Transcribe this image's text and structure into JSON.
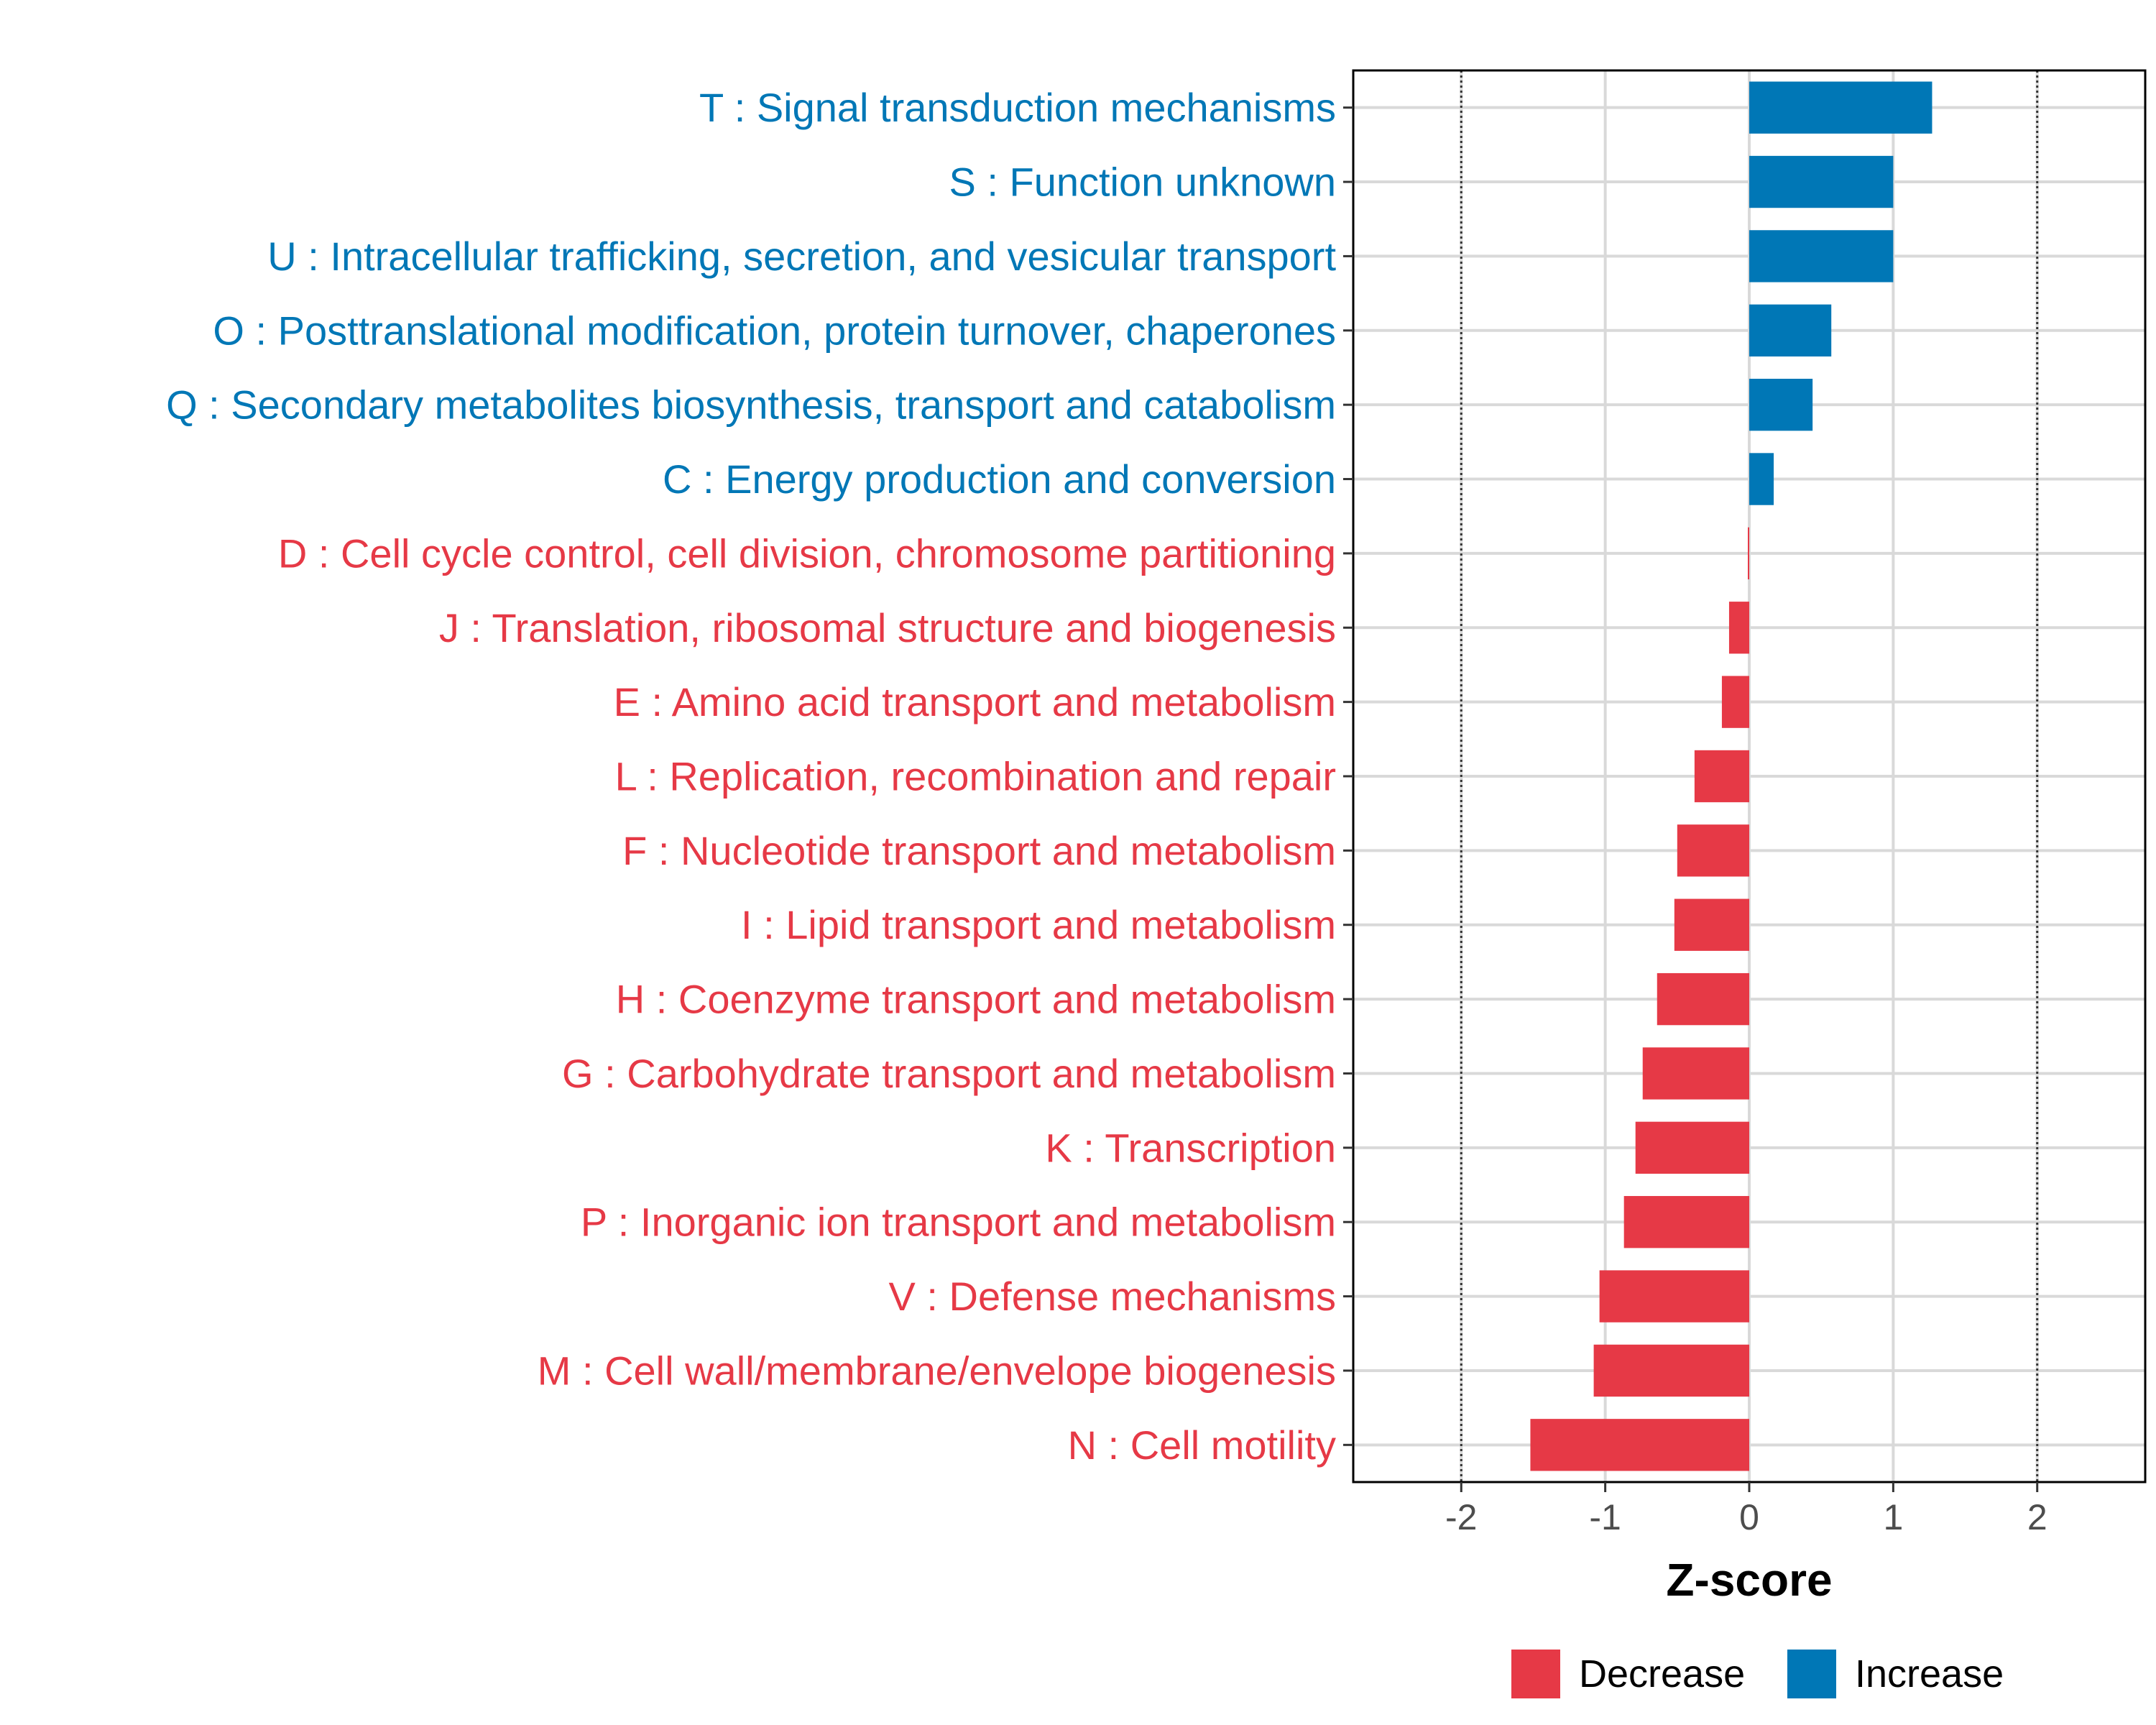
{
  "chart_data": {
    "type": "bar",
    "orientation": "horizontal",
    "xlabel": "Z-score",
    "ylabel": "",
    "xlim": [
      -2.75,
      2.75
    ],
    "xticks": [
      -2,
      -1,
      0,
      1,
      2
    ],
    "xtick_labels": [
      "-2",
      "-1",
      "0",
      "1",
      "2"
    ],
    "reference_lines": [
      -2,
      2
    ],
    "grid": true,
    "legend_position": "bottom",
    "colors": {
      "Decrease": "#E63946",
      "Increase": "#0077B6"
    },
    "legend": [
      {
        "name": "Decrease",
        "color": "#E63946"
      },
      {
        "name": "Increase",
        "color": "#0077B6"
      }
    ],
    "bars": [
      {
        "label": "T : Signal transduction mechanisms",
        "value": 1.27,
        "group": "Increase"
      },
      {
        "label": "S : Function unknown",
        "value": 1.0,
        "group": "Increase"
      },
      {
        "label": "U : Intracellular trafficking, secretion, and vesicular transport",
        "value": 1.0,
        "group": "Increase"
      },
      {
        "label": "O : Posttranslational modification, protein turnover, chaperones",
        "value": 0.57,
        "group": "Increase"
      },
      {
        "label": "Q : Secondary metabolites biosynthesis, transport and catabolism",
        "value": 0.44,
        "group": "Increase"
      },
      {
        "label": "C : Energy production and conversion",
        "value": 0.17,
        "group": "Increase"
      },
      {
        "label": "D : Cell cycle control, cell division, chromosome partitioning",
        "value": -0.01,
        "group": "Decrease"
      },
      {
        "label": "J : Translation, ribosomal structure and biogenesis",
        "value": -0.14,
        "group": "Decrease"
      },
      {
        "label": "E : Amino acid transport and metabolism",
        "value": -0.19,
        "group": "Decrease"
      },
      {
        "label": "L : Replication, recombination and repair",
        "value": -0.38,
        "group": "Decrease"
      },
      {
        "label": "F : Nucleotide transport and metabolism",
        "value": -0.5,
        "group": "Decrease"
      },
      {
        "label": "I : Lipid transport and metabolism",
        "value": -0.52,
        "group": "Decrease"
      },
      {
        "label": "H : Coenzyme transport and metabolism",
        "value": -0.64,
        "group": "Decrease"
      },
      {
        "label": "G : Carbohydrate transport and metabolism",
        "value": -0.74,
        "group": "Decrease"
      },
      {
        "label": "K : Transcription",
        "value": -0.79,
        "group": "Decrease"
      },
      {
        "label": "P : Inorganic ion transport and metabolism",
        "value": -0.87,
        "group": "Decrease"
      },
      {
        "label": "V : Defense mechanisms",
        "value": -1.04,
        "group": "Decrease"
      },
      {
        "label": "M : Cell wall/membrane/envelope biogenesis",
        "value": -1.08,
        "group": "Decrease"
      },
      {
        "label": "N : Cell motility",
        "value": -1.52,
        "group": "Decrease"
      }
    ]
  }
}
